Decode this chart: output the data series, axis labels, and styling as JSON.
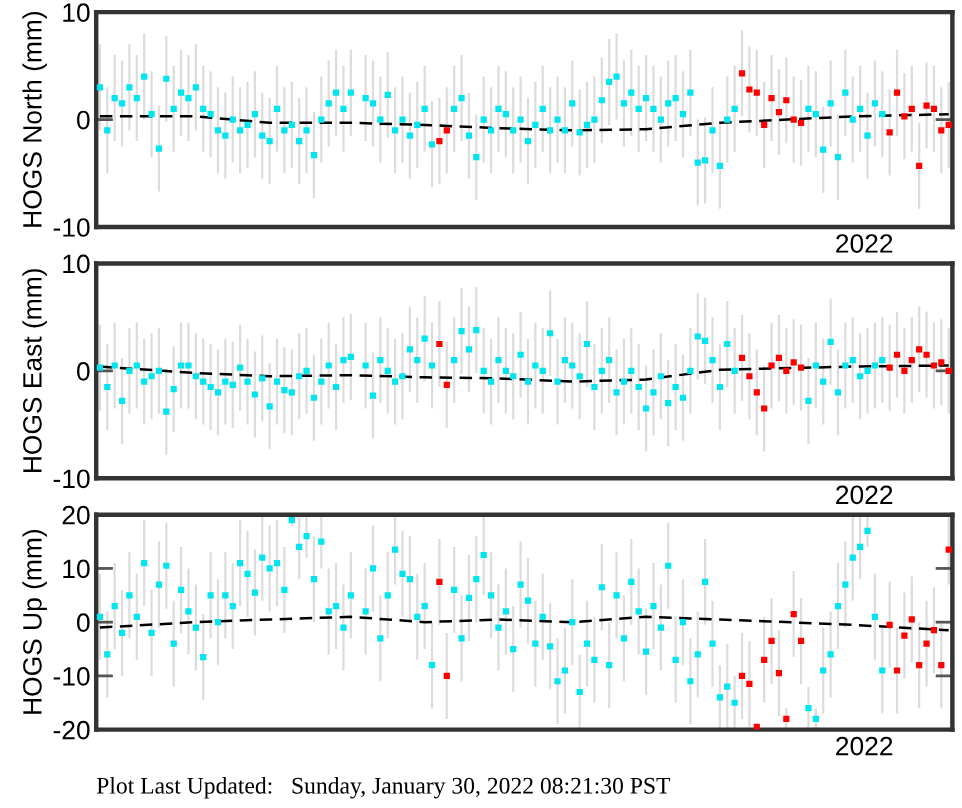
{
  "chart_data": [
    {
      "type": "scatter",
      "ylabel": "HOGS North (mm)",
      "annotations": [
        "2022"
      ],
      "ylim": [
        -10,
        10
      ],
      "yticks": [
        -10,
        0,
        10
      ],
      "marker": "square",
      "categories": [
        null,
        null,
        null,
        null,
        null,
        null,
        null,
        null,
        null,
        null,
        null,
        null,
        null,
        null,
        null,
        null,
        null,
        null,
        null,
        null,
        null,
        null,
        null,
        null,
        null,
        null,
        null,
        null,
        null,
        null,
        null,
        null,
        null,
        null,
        null,
        null,
        null,
        null,
        null,
        null,
        null,
        null,
        null,
        null,
        null,
        null,
        null,
        null,
        null,
        null,
        null,
        null,
        null,
        null,
        null,
        null,
        null,
        null,
        null,
        null,
        null,
        null,
        null,
        null,
        null,
        null,
        null,
        null,
        null,
        null,
        null,
        null,
        null,
        null,
        null,
        null,
        null,
        null,
        null,
        null,
        null,
        null,
        null,
        null,
        null,
        null,
        null,
        null,
        null,
        null,
        null,
        null,
        null,
        null,
        null,
        null,
        null,
        null,
        null,
        null,
        null,
        null,
        null,
        null,
        null,
        null,
        null,
        null,
        null,
        null,
        null,
        null,
        null,
        null,
        null,
        null
      ],
      "series": [
        {
          "type": "scatter",
          "color": "#00e5ee",
          "values": [
            3,
            -1,
            2,
            1.5,
            3,
            2,
            4,
            0.5,
            -2.7,
            3.8,
            1,
            2.5,
            2,
            3,
            1,
            0.5,
            -1,
            -1.5,
            0,
            -1,
            -0.5,
            0.5,
            -1.5,
            -2,
            1,
            -1,
            -0.5,
            -2,
            -1,
            -3.3,
            0,
            1.5,
            2.5,
            1,
            2.5,
            null,
            2,
            1.5,
            0,
            2.3,
            -1,
            0,
            -1.5,
            -0.5,
            1,
            -2.3,
            null,
            null,
            1,
            2,
            -1.5,
            -3.5,
            0,
            -1,
            1,
            0.5,
            -1,
            0,
            -2,
            -0.5,
            1,
            -1,
            0,
            -1,
            1.5,
            -1.2,
            -0.5,
            0,
            1.8,
            3.5,
            4,
            1.5,
            2.5,
            1,
            2,
            1,
            0,
            1.5,
            2,
            0.5,
            2.5,
            -4,
            -3.8,
            -1,
            -4.3,
            0,
            1,
            null,
            null,
            null,
            null,
            null,
            null,
            null,
            null,
            null,
            1,
            0.5,
            -2.8,
            1.5,
            -3.5,
            2.5,
            0,
            1,
            -1.5,
            1.5,
            0.5,
            null,
            null,
            null,
            null,
            null,
            null,
            null,
            null,
            null
          ],
          "errors": [
            4,
            4,
            4,
            4,
            4,
            4,
            4,
            4,
            4,
            4,
            4,
            4,
            4,
            4,
            4,
            4,
            4,
            4,
            4,
            4,
            4,
            4,
            4,
            4,
            4,
            4,
            4,
            4,
            4,
            4,
            4,
            4,
            4,
            4,
            4,
            null,
            4,
            4,
            4,
            4,
            4,
            4,
            4,
            4,
            4,
            4,
            null,
            null,
            4,
            4,
            4,
            4,
            4,
            4,
            4,
            4,
            4,
            4,
            4,
            4,
            4,
            4,
            4,
            4,
            4,
            4,
            4,
            4,
            4,
            4,
            4,
            4,
            4,
            4,
            4,
            4,
            4,
            4,
            4,
            4,
            4,
            4,
            4,
            4,
            4,
            4,
            4,
            null,
            null,
            null,
            null,
            null,
            null,
            null,
            null,
            null,
            4,
            4,
            4,
            4,
            4,
            4,
            4,
            4,
            4,
            4,
            4,
            null,
            null,
            null,
            null,
            null,
            null,
            null,
            null,
            null
          ]
        },
        {
          "type": "scatter",
          "color": "#ff0000",
          "values": [
            null,
            null,
            null,
            null,
            null,
            null,
            null,
            null,
            null,
            null,
            null,
            null,
            null,
            null,
            null,
            null,
            null,
            null,
            null,
            null,
            null,
            null,
            null,
            null,
            null,
            null,
            null,
            null,
            null,
            null,
            null,
            null,
            null,
            null,
            null,
            null,
            null,
            null,
            null,
            null,
            null,
            null,
            null,
            null,
            null,
            null,
            -2,
            -1,
            null,
            null,
            null,
            null,
            null,
            null,
            null,
            null,
            null,
            null,
            null,
            null,
            null,
            null,
            null,
            null,
            null,
            null,
            null,
            null,
            null,
            null,
            null,
            null,
            null,
            null,
            null,
            null,
            null,
            null,
            null,
            null,
            null,
            null,
            null,
            null,
            null,
            null,
            null,
            4.3,
            2.8,
            2.5,
            -0.5,
            2,
            0.7,
            1.8,
            0,
            -0.3,
            null,
            null,
            null,
            null,
            null,
            null,
            null,
            null,
            null,
            null,
            null,
            -1.2,
            2.5,
            0.3,
            1,
            -4.3,
            1.3,
            1,
            -1,
            -0.5
          ],
          "errors": [
            null,
            null,
            null,
            null,
            null,
            null,
            null,
            null,
            null,
            null,
            null,
            null,
            null,
            null,
            null,
            null,
            null,
            null,
            null,
            null,
            null,
            null,
            null,
            null,
            null,
            null,
            null,
            null,
            null,
            null,
            null,
            null,
            null,
            null,
            null,
            null,
            null,
            null,
            null,
            null,
            null,
            null,
            null,
            null,
            null,
            null,
            4,
            4,
            null,
            null,
            null,
            null,
            null,
            null,
            null,
            null,
            null,
            null,
            null,
            null,
            null,
            null,
            null,
            null,
            null,
            null,
            null,
            null,
            null,
            null,
            null,
            null,
            null,
            null,
            null,
            null,
            null,
            null,
            null,
            null,
            null,
            null,
            null,
            null,
            null,
            null,
            null,
            4,
            4,
            4,
            4,
            4,
            4,
            4,
            4,
            4,
            null,
            null,
            null,
            null,
            null,
            null,
            null,
            null,
            null,
            null,
            null,
            4,
            4,
            4,
            4,
            4,
            4,
            4,
            4,
            4
          ]
        },
        {
          "type": "line",
          "color": "#000000",
          "line_style": "dashed",
          "marker": "none",
          "values": [
            0.3,
            null,
            null,
            null,
            null,
            null,
            null,
            null,
            null,
            null,
            null,
            null,
            null,
            0.3,
            null,
            null,
            null,
            null,
            null,
            null,
            null,
            null,
            null,
            -0.3,
            null,
            null,
            null,
            null,
            null,
            null,
            null,
            null,
            null,
            null,
            -0.3,
            null,
            null,
            null,
            null,
            null,
            null,
            null,
            null,
            null,
            -0.5,
            null,
            null,
            null,
            null,
            null,
            null,
            null,
            null,
            null,
            -0.8,
            null,
            null,
            null,
            null,
            null,
            null,
            null,
            null,
            null,
            -1,
            null,
            null,
            null,
            null,
            null,
            null,
            null,
            null,
            null,
            -0.9,
            null,
            null,
            null,
            null,
            null,
            null,
            null,
            null,
            null,
            -0.3,
            null,
            null,
            null,
            null,
            null,
            null,
            null,
            null,
            null,
            null,
            null,
            null,
            null,
            null,
            null,
            null,
            null,
            0.3,
            null,
            null,
            null,
            null,
            null,
            null,
            null,
            null,
            null,
            null,
            null,
            null,
            0.5
          ]
        }
      ]
    },
    {
      "type": "scatter",
      "ylabel": "HOGS East (mm)",
      "annotations": [
        "2022"
      ],
      "ylim": [
        -10,
        10
      ],
      "yticks": [
        -10,
        0,
        10
      ],
      "marker": "square",
      "categories": [
        null,
        null,
        null,
        null,
        null,
        null,
        null,
        null,
        null,
        null,
        null,
        null,
        null,
        null,
        null,
        null,
        null,
        null,
        null,
        null,
        null,
        null,
        null,
        null,
        null,
        null,
        null,
        null,
        null,
        null,
        null,
        null,
        null,
        null,
        null,
        null,
        null,
        null,
        null,
        null,
        null,
        null,
        null,
        null,
        null,
        null,
        null,
        null,
        null,
        null,
        null,
        null,
        null,
        null,
        null,
        null,
        null,
        null,
        null,
        null,
        null,
        null,
        null,
        null,
        null,
        null,
        null,
        null,
        null,
        null,
        null,
        null,
        null,
        null,
        null,
        null,
        null,
        null,
        null,
        null,
        null,
        null,
        null,
        null,
        null,
        null,
        null,
        null,
        null,
        null,
        null,
        null,
        null,
        null,
        null,
        null,
        null,
        null,
        null,
        null,
        null,
        null,
        null,
        null,
        null,
        null,
        null,
        null,
        null,
        null,
        null,
        null,
        null,
        null,
        null,
        null
      ],
      "series": [
        {
          "type": "scatter",
          "color": "#00e5ee",
          "values": [
            0.3,
            -1.5,
            0.5,
            -2.8,
            0,
            0.5,
            -1,
            -0.5,
            0,
            -3.8,
            -1.7,
            0.5,
            0.5,
            -0.5,
            -1,
            -1.5,
            -2,
            -1,
            -1.3,
            0.3,
            -1,
            -2.2,
            -0.7,
            -3.3,
            -1,
            -1.8,
            -2,
            -0.5,
            0,
            -2.5,
            -1,
            0.5,
            -1.5,
            1,
            1.3,
            null,
            0.5,
            -2.3,
            1,
            0,
            -1,
            -0.5,
            2,
            1,
            3,
            0.5,
            null,
            null,
            1,
            3.7,
            2,
            3.8,
            0,
            -1,
            1,
            0,
            -0.5,
            1.5,
            -1,
            0.5,
            0,
            3.5,
            -1,
            1,
            0.5,
            -0.5,
            2.5,
            -1.5,
            0,
            1,
            -2,
            -1,
            0,
            -1.5,
            -3.5,
            -2,
            -0.5,
            -3,
            -1.5,
            -2.5,
            0,
            3.2,
            2.8,
            1,
            -1.5,
            2.5,
            0,
            null,
            null,
            null,
            null,
            null,
            null,
            null,
            null,
            null,
            -2.8,
            0.5,
            -1,
            2.7,
            -2,
            0.5,
            1,
            -0.5,
            0,
            0.5,
            1,
            null,
            null,
            null,
            null,
            null,
            null,
            null,
            null,
            null
          ],
          "errors": [
            4,
            4,
            4,
            4,
            4,
            4,
            4,
            4,
            4,
            4,
            4,
            4,
            4,
            4,
            4,
            4,
            4,
            4,
            4,
            4,
            4,
            4,
            4,
            4,
            4,
            4,
            4,
            4,
            4,
            4,
            4,
            4,
            4,
            4,
            4,
            null,
            4,
            4,
            4,
            4,
            4,
            4,
            4,
            4,
            4,
            4,
            null,
            null,
            4,
            4,
            4,
            4,
            4,
            4,
            4,
            4,
            4,
            4,
            4,
            4,
            4,
            4,
            4,
            4,
            4,
            4,
            4,
            4,
            4,
            4,
            4,
            4,
            4,
            4,
            4,
            4,
            4,
            4,
            4,
            4,
            4,
            4,
            4,
            4,
            4,
            4,
            4,
            null,
            null,
            null,
            null,
            null,
            null,
            null,
            null,
            null,
            4,
            4,
            4,
            4,
            4,
            4,
            4,
            4,
            4,
            4,
            4,
            null,
            null,
            null,
            null,
            null,
            null,
            null,
            null,
            null
          ]
        },
        {
          "type": "scatter",
          "color": "#ff0000",
          "values": [
            null,
            null,
            null,
            null,
            null,
            null,
            null,
            null,
            null,
            null,
            null,
            null,
            null,
            null,
            null,
            null,
            null,
            null,
            null,
            null,
            null,
            null,
            null,
            null,
            null,
            null,
            null,
            null,
            null,
            null,
            null,
            null,
            null,
            null,
            null,
            null,
            null,
            null,
            null,
            null,
            null,
            null,
            null,
            null,
            null,
            null,
            2.5,
            -1.3,
            null,
            null,
            null,
            null,
            null,
            null,
            null,
            null,
            null,
            null,
            null,
            null,
            null,
            null,
            null,
            null,
            null,
            null,
            null,
            null,
            null,
            null,
            null,
            null,
            null,
            null,
            null,
            null,
            null,
            null,
            null,
            null,
            null,
            null,
            null,
            null,
            null,
            null,
            null,
            1.2,
            -0.5,
            -2,
            -3.5,
            0.5,
            1.2,
            0,
            0.8,
            0.3,
            null,
            null,
            null,
            null,
            null,
            null,
            null,
            null,
            null,
            null,
            null,
            0.3,
            1.5,
            0,
            1,
            2,
            1.5,
            0.5,
            0.8,
            0
          ],
          "errors": [
            null,
            null,
            null,
            null,
            null,
            null,
            null,
            null,
            null,
            null,
            null,
            null,
            null,
            null,
            null,
            null,
            null,
            null,
            null,
            null,
            null,
            null,
            null,
            null,
            null,
            null,
            null,
            null,
            null,
            null,
            null,
            null,
            null,
            null,
            null,
            null,
            null,
            null,
            null,
            null,
            null,
            null,
            null,
            null,
            null,
            null,
            4,
            4,
            null,
            null,
            null,
            null,
            null,
            null,
            null,
            null,
            null,
            null,
            null,
            null,
            null,
            null,
            null,
            null,
            null,
            null,
            null,
            null,
            null,
            null,
            null,
            null,
            null,
            null,
            null,
            null,
            null,
            null,
            null,
            null,
            null,
            null,
            null,
            null,
            null,
            null,
            null,
            4,
            4,
            4,
            4,
            4,
            4,
            4,
            4,
            4,
            null,
            null,
            null,
            null,
            null,
            null,
            null,
            null,
            null,
            null,
            null,
            4,
            4,
            4,
            4,
            4,
            4,
            4,
            4,
            4
          ]
        },
        {
          "type": "line",
          "color": "#000000",
          "line_style": "dashed",
          "marker": "none",
          "values": [
            0.4,
            null,
            null,
            null,
            null,
            null,
            null,
            null,
            null,
            null,
            null,
            null,
            null,
            -0.2,
            null,
            null,
            null,
            null,
            null,
            null,
            null,
            null,
            null,
            -0.5,
            null,
            null,
            null,
            null,
            null,
            null,
            null,
            null,
            null,
            null,
            -0.4,
            null,
            null,
            null,
            null,
            null,
            null,
            null,
            null,
            null,
            -0.6,
            null,
            null,
            null,
            null,
            null,
            null,
            null,
            null,
            null,
            -0.7,
            null,
            null,
            null,
            null,
            null,
            null,
            null,
            null,
            null,
            -1,
            null,
            null,
            null,
            null,
            null,
            null,
            null,
            null,
            null,
            -0.8,
            null,
            null,
            null,
            null,
            null,
            null,
            null,
            null,
            null,
            0.1,
            null,
            null,
            null,
            null,
            null,
            null,
            null,
            null,
            null,
            null,
            null,
            null,
            null,
            null,
            null,
            null,
            null,
            0.4,
            null,
            null,
            null,
            null,
            null,
            null,
            null,
            null,
            null,
            null,
            null,
            null,
            0.5
          ]
        }
      ]
    },
    {
      "type": "scatter",
      "ylabel": "HOGS Up (mm)",
      "annotations": [
        "2022",
        "Plot Last Updated:   Sunday, January 30, 2022 08:21:30 PST"
      ],
      "ylim": [
        -20,
        20
      ],
      "yticks": [
        -20,
        -10,
        0,
        10,
        20
      ],
      "marker": "square",
      "categories": [
        null,
        null,
        null,
        null,
        null,
        null,
        null,
        null,
        null,
        null,
        null,
        null,
        null,
        null,
        null,
        null,
        null,
        null,
        null,
        null,
        null,
        null,
        null,
        null,
        null,
        null,
        null,
        null,
        null,
        null,
        null,
        null,
        null,
        null,
        null,
        null,
        null,
        null,
        null,
        null,
        null,
        null,
        null,
        null,
        null,
        null,
        null,
        null,
        null,
        null,
        null,
        null,
        null,
        null,
        null,
        null,
        null,
        null,
        null,
        null,
        null,
        null,
        null,
        null,
        null,
        null,
        null,
        null,
        null,
        null,
        null,
        null,
        null,
        null,
        null,
        null,
        null,
        null,
        null,
        null,
        null,
        null,
        null,
        null,
        null,
        null,
        null,
        null,
        null,
        null,
        null,
        null,
        null,
        null,
        null,
        null,
        null,
        null,
        null,
        null,
        null,
        null,
        null,
        null,
        null,
        null,
        null,
        null,
        null,
        null,
        null,
        null,
        null,
        null,
        null,
        null
      ],
      "series": [
        {
          "type": "scatter",
          "color": "#00e5ee",
          "values": [
            1,
            -6,
            3,
            -2,
            5,
            1,
            11,
            -2,
            7,
            10.5,
            -4,
            6,
            2,
            -1,
            -6.5,
            5,
            0,
            5,
            3,
            11,
            9,
            5.5,
            12,
            10,
            11,
            6,
            19,
            14,
            16,
            8,
            15,
            2,
            3,
            -1,
            5,
            null,
            2,
            10,
            -3,
            5,
            13.5,
            9,
            8,
            1,
            3,
            -8,
            null,
            null,
            6,
            -3,
            4.5,
            8,
            12.5,
            5,
            -1,
            2,
            -5,
            7,
            4,
            -4,
            1,
            -4.5,
            -11,
            -9,
            0,
            -13,
            -4,
            -7,
            6.5,
            -8,
            5,
            -3,
            7.5,
            2,
            -5.5,
            3,
            -1,
            10.5,
            -7,
            0,
            -11,
            -6,
            7.5,
            -4,
            -14,
            -12,
            -15,
            null,
            null,
            null,
            null,
            null,
            null,
            null,
            null,
            null,
            -16,
            -18,
            -9,
            -6,
            3,
            7,
            12,
            14,
            17,
            1,
            -9,
            null,
            null,
            null,
            null,
            null,
            null,
            null,
            null,
            null
          ],
          "errors": [
            8,
            8,
            8,
            8,
            8,
            8,
            8,
            8,
            8,
            8,
            8,
            8,
            8,
            8,
            8,
            8,
            8,
            8,
            8,
            8,
            8,
            8,
            8,
            8,
            8,
            8,
            1,
            6,
            4,
            8,
            5,
            8,
            8,
            8,
            8,
            null,
            8,
            8,
            8,
            8,
            6.5,
            8,
            8,
            8,
            8,
            8,
            null,
            null,
            8,
            8,
            8,
            8,
            7.5,
            8,
            8,
            8,
            8,
            8,
            8,
            8,
            8,
            8,
            8,
            8,
            8,
            7,
            8,
            8,
            8,
            8,
            8,
            8,
            8,
            8,
            8,
            8,
            8,
            8,
            8,
            8,
            8,
            8,
            8,
            8,
            6,
            8,
            5,
            null,
            null,
            null,
            null,
            null,
            null,
            null,
            null,
            null,
            4,
            2,
            8,
            8,
            8,
            8,
            8,
            6,
            3,
            8,
            8,
            null,
            null,
            null,
            null,
            null,
            null,
            null,
            null,
            null
          ]
        },
        {
          "type": "scatter",
          "color": "#ff0000",
          "values": [
            null,
            null,
            null,
            null,
            null,
            null,
            null,
            null,
            null,
            null,
            null,
            null,
            null,
            null,
            null,
            null,
            null,
            null,
            null,
            null,
            null,
            null,
            null,
            null,
            null,
            null,
            null,
            null,
            null,
            null,
            null,
            null,
            null,
            null,
            null,
            null,
            null,
            null,
            null,
            null,
            null,
            null,
            null,
            null,
            null,
            null,
            7.5,
            -10,
            null,
            null,
            null,
            null,
            null,
            null,
            null,
            null,
            null,
            null,
            null,
            null,
            null,
            null,
            null,
            null,
            null,
            null,
            null,
            null,
            null,
            null,
            null,
            null,
            null,
            null,
            null,
            null,
            null,
            null,
            null,
            null,
            null,
            null,
            null,
            null,
            null,
            null,
            null,
            -10,
            -11.5,
            -19.5,
            -7,
            -3.5,
            -9.5,
            -18,
            1.5,
            -3.5,
            null,
            null,
            null,
            null,
            null,
            null,
            null,
            null,
            null,
            null,
            null,
            -0.5,
            -9,
            -2.5,
            0.5,
            -8,
            -4,
            -1.5,
            -8,
            13.5
          ],
          "errors": [
            null,
            null,
            null,
            null,
            null,
            null,
            null,
            null,
            null,
            null,
            null,
            null,
            null,
            null,
            null,
            null,
            null,
            null,
            null,
            null,
            null,
            null,
            null,
            null,
            null,
            null,
            null,
            null,
            null,
            null,
            null,
            null,
            null,
            null,
            null,
            null,
            null,
            null,
            null,
            null,
            null,
            null,
            null,
            null,
            null,
            null,
            8,
            8,
            null,
            null,
            null,
            null,
            null,
            null,
            null,
            null,
            null,
            null,
            null,
            null,
            null,
            null,
            null,
            null,
            null,
            null,
            null,
            null,
            null,
            null,
            null,
            null,
            null,
            null,
            null,
            null,
            null,
            null,
            null,
            null,
            null,
            null,
            null,
            null,
            null,
            null,
            null,
            8,
            8,
            0.5,
            8,
            8,
            8,
            2,
            8,
            8,
            null,
            null,
            null,
            null,
            null,
            null,
            null,
            null,
            null,
            null,
            null,
            8,
            8,
            8,
            8,
            8,
            8,
            8,
            8,
            6.5
          ]
        },
        {
          "type": "line",
          "color": "#000000",
          "line_style": "dashed",
          "marker": "none",
          "values": [
            -1,
            null,
            null,
            null,
            null,
            null,
            null,
            null,
            null,
            null,
            null,
            null,
            null,
            0,
            null,
            null,
            null,
            null,
            null,
            null,
            null,
            null,
            null,
            0.5,
            null,
            null,
            null,
            null,
            null,
            null,
            null,
            null,
            null,
            null,
            1,
            null,
            null,
            null,
            null,
            null,
            null,
            null,
            null,
            null,
            0,
            null,
            null,
            null,
            null,
            null,
            null,
            null,
            null,
            null,
            0.5,
            null,
            null,
            null,
            null,
            null,
            null,
            null,
            null,
            null,
            0,
            null,
            null,
            null,
            null,
            null,
            null,
            null,
            null,
            null,
            1,
            null,
            null,
            null,
            null,
            null,
            null,
            null,
            null,
            null,
            0.5,
            null,
            null,
            null,
            null,
            null,
            null,
            null,
            null,
            null,
            null,
            null,
            null,
            null,
            null,
            null,
            null,
            null,
            -0.5,
            null,
            null,
            null,
            null,
            null,
            null,
            null,
            null,
            null,
            null,
            null,
            null,
            -1.5
          ]
        }
      ]
    }
  ]
}
